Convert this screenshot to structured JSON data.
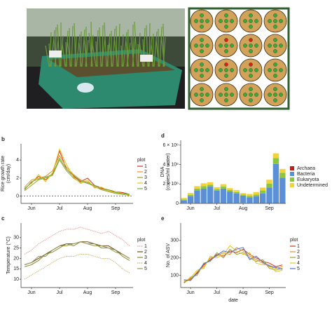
{
  "chart_data": [
    {
      "type": "line",
      "label": "b",
      "ylabel": [
        "Rice growth rate",
        "(cm/day)"
      ],
      "categories": [
        null,
        "Jun",
        null,
        null,
        null,
        "Jul",
        null,
        null,
        null,
        "Aug",
        null,
        null,
        null,
        "Sep",
        null,
        null
      ],
      "ylim": [
        -0.8,
        5.8
      ],
      "yticks": [
        0,
        2,
        4
      ],
      "hline": 0,
      "legend_title": "plot",
      "series": [
        {
          "name": "1",
          "color": "#d7301f",
          "values": [
            0.8,
            1.5,
            2.2,
            1.8,
            2.5,
            5,
            3,
            2.2,
            1.6,
            2,
            1.2,
            0.9,
            0.7,
            0.5,
            0.4,
            0.2
          ]
        },
        {
          "name": "2",
          "color": "#e8902a",
          "values": [
            1,
            1.8,
            2,
            2.2,
            2.8,
            4.5,
            3.2,
            2.4,
            1.8,
            1.5,
            1,
            0.8,
            0.6,
            0.4,
            0.3,
            0.1
          ]
        },
        {
          "name": "3",
          "color": "#9aa32a",
          "values": [
            0.6,
            1.2,
            1.8,
            2,
            2.3,
            4,
            2.8,
            2,
            1.5,
            1.6,
            1.1,
            0.7,
            0.5,
            0.3,
            0.2,
            0.1
          ]
        },
        {
          "name": "4",
          "color": "#e6c619",
          "values": [
            0.9,
            1.4,
            2.4,
            1.6,
            2.6,
            5.2,
            3.5,
            2.1,
            1.4,
            1.8,
            0.9,
            1,
            0.6,
            0.5,
            0.3,
            0
          ]
        },
        {
          "name": "5",
          "color": "#6fae3a",
          "values": [
            0.7,
            1.6,
            1.9,
            2.1,
            2.4,
            4.2,
            3,
            2.3,
            1.7,
            1.4,
            1.2,
            0.8,
            0.7,
            0.4,
            0.3,
            0.2
          ]
        }
      ]
    },
    {
      "type": "line",
      "label": "c",
      "ylabel": [
        "Temperature (°C)"
      ],
      "categories": [
        null,
        "Jun",
        null,
        null,
        null,
        "Jul",
        null,
        null,
        null,
        "Aug",
        null,
        null,
        null,
        "Sep",
        null,
        null
      ],
      "ylim": [
        6,
        37
      ],
      "yticks": [
        10,
        15,
        20,
        25,
        30
      ],
      "legend_title": "plot",
      "series": [
        {
          "name": "1",
          "color": "#e5a0a0",
          "dashed": true,
          "values": [
            22,
            24,
            27,
            29,
            31,
            33,
            34,
            34,
            35,
            34,
            33,
            32,
            33,
            31,
            29,
            26
          ]
        },
        {
          "name": "2",
          "color": "#6b4a1e",
          "values": [
            17,
            18,
            20,
            22,
            24,
            26,
            27,
            27,
            28,
            28,
            27,
            26,
            26,
            24,
            22,
            20
          ]
        },
        {
          "name": "3",
          "color": "#8a8a3a",
          "values": [
            16,
            17,
            19,
            22,
            23,
            25,
            27,
            26,
            28,
            27,
            27,
            25,
            25,
            24,
            21,
            19
          ]
        },
        {
          "name": "4",
          "color": "#c8b878",
          "dashed": true,
          "values": [
            10,
            12,
            14,
            16,
            18,
            20,
            21,
            21,
            22,
            22,
            21,
            20,
            20,
            18,
            15,
            13
          ]
        },
        {
          "name": "5",
          "color": "#9a9a50",
          "values": [
            17,
            18,
            21,
            21,
            24,
            26,
            26,
            27,
            28,
            27,
            26,
            26,
            25,
            23,
            22,
            20
          ]
        }
      ]
    },
    {
      "type": "stacked_bar",
      "label": "d",
      "ylabel": [
        "DNA",
        "(copies/ml water)"
      ],
      "categories": [
        null,
        "Jun",
        null,
        null,
        null,
        "Jul",
        null,
        null,
        null,
        "Aug",
        null,
        null,
        null,
        "Sep",
        null,
        null
      ],
      "ylim": [
        0,
        6500000
      ],
      "yticks": [
        0,
        {
          "value": 2000000,
          "label": "2 × 10⁶"
        },
        {
          "value": 4000000,
          "label": "4 × 10⁶"
        },
        {
          "value": 6000000,
          "label": "6 × 10⁶"
        }
      ],
      "series": [
        {
          "name": "Archaea",
          "color": "#c0201a",
          "values": [
            10000,
            20000,
            30000,
            20000,
            30000,
            20000,
            30000,
            20000,
            20000,
            10000,
            20000,
            20000,
            30000,
            40000,
            60000,
            50000
          ]
        },
        {
          "name": "Bacteria",
          "color": "#5b8fd6",
          "values": [
            300000,
            700000,
            1300000,
            1500000,
            1700000,
            1300000,
            1500000,
            1200000,
            1000000,
            800000,
            600000,
            700000,
            1000000,
            1600000,
            4000000,
            2600000
          ]
        },
        {
          "name": "Eukaryota",
          "color": "#8cc63f",
          "values": [
            100000,
            150000,
            200000,
            250000,
            200000,
            150000,
            200000,
            150000,
            150000,
            100000,
            150000,
            200000,
            300000,
            400000,
            600000,
            500000
          ]
        },
        {
          "name": "Undetermined",
          "color": "#f2d43a",
          "values": [
            150000,
            200000,
            250000,
            300000,
            250000,
            200000,
            250000,
            200000,
            200000,
            150000,
            200000,
            250000,
            300000,
            400000,
            500000,
            400000
          ]
        }
      ]
    },
    {
      "type": "line",
      "label": "e",
      "ylabel": [
        "No. of ASV"
      ],
      "xlabel": "date",
      "categories": [
        null,
        "Jun",
        null,
        null,
        null,
        "Jul",
        null,
        null,
        null,
        "Aug",
        null,
        null,
        null,
        "Sep",
        null,
        null
      ],
      "ylim": [
        30,
        400
      ],
      "yticks": [
        100,
        200,
        300
      ],
      "legend_title": "plot",
      "series": [
        {
          "name": "1",
          "color": "#d7301f",
          "values": [
            60,
            80,
            110,
            160,
            190,
            220,
            210,
            240,
            230,
            250,
            220,
            200,
            180,
            170,
            150,
            160
          ]
        },
        {
          "name": "2",
          "color": "#e8902a",
          "values": [
            70,
            75,
            120,
            150,
            200,
            210,
            230,
            220,
            260,
            240,
            210,
            190,
            170,
            150,
            140,
            150
          ]
        },
        {
          "name": "3",
          "color": "#9aa32a",
          "values": [
            55,
            90,
            100,
            170,
            180,
            230,
            200,
            250,
            220,
            230,
            200,
            180,
            190,
            140,
            130,
            140
          ]
        },
        {
          "name": "4",
          "color": "#e6c619",
          "values": [
            65,
            85,
            130,
            140,
            210,
            200,
            220,
            270,
            240,
            220,
            230,
            170,
            160,
            160,
            120,
            130
          ]
        },
        {
          "name": "5",
          "color": "#4f6fd0",
          "values": [
            75,
            70,
            115,
            165,
            185,
            215,
            240,
            230,
            250,
            260,
            190,
            210,
            175,
            155,
            145,
            135
          ]
        }
      ]
    }
  ]
}
